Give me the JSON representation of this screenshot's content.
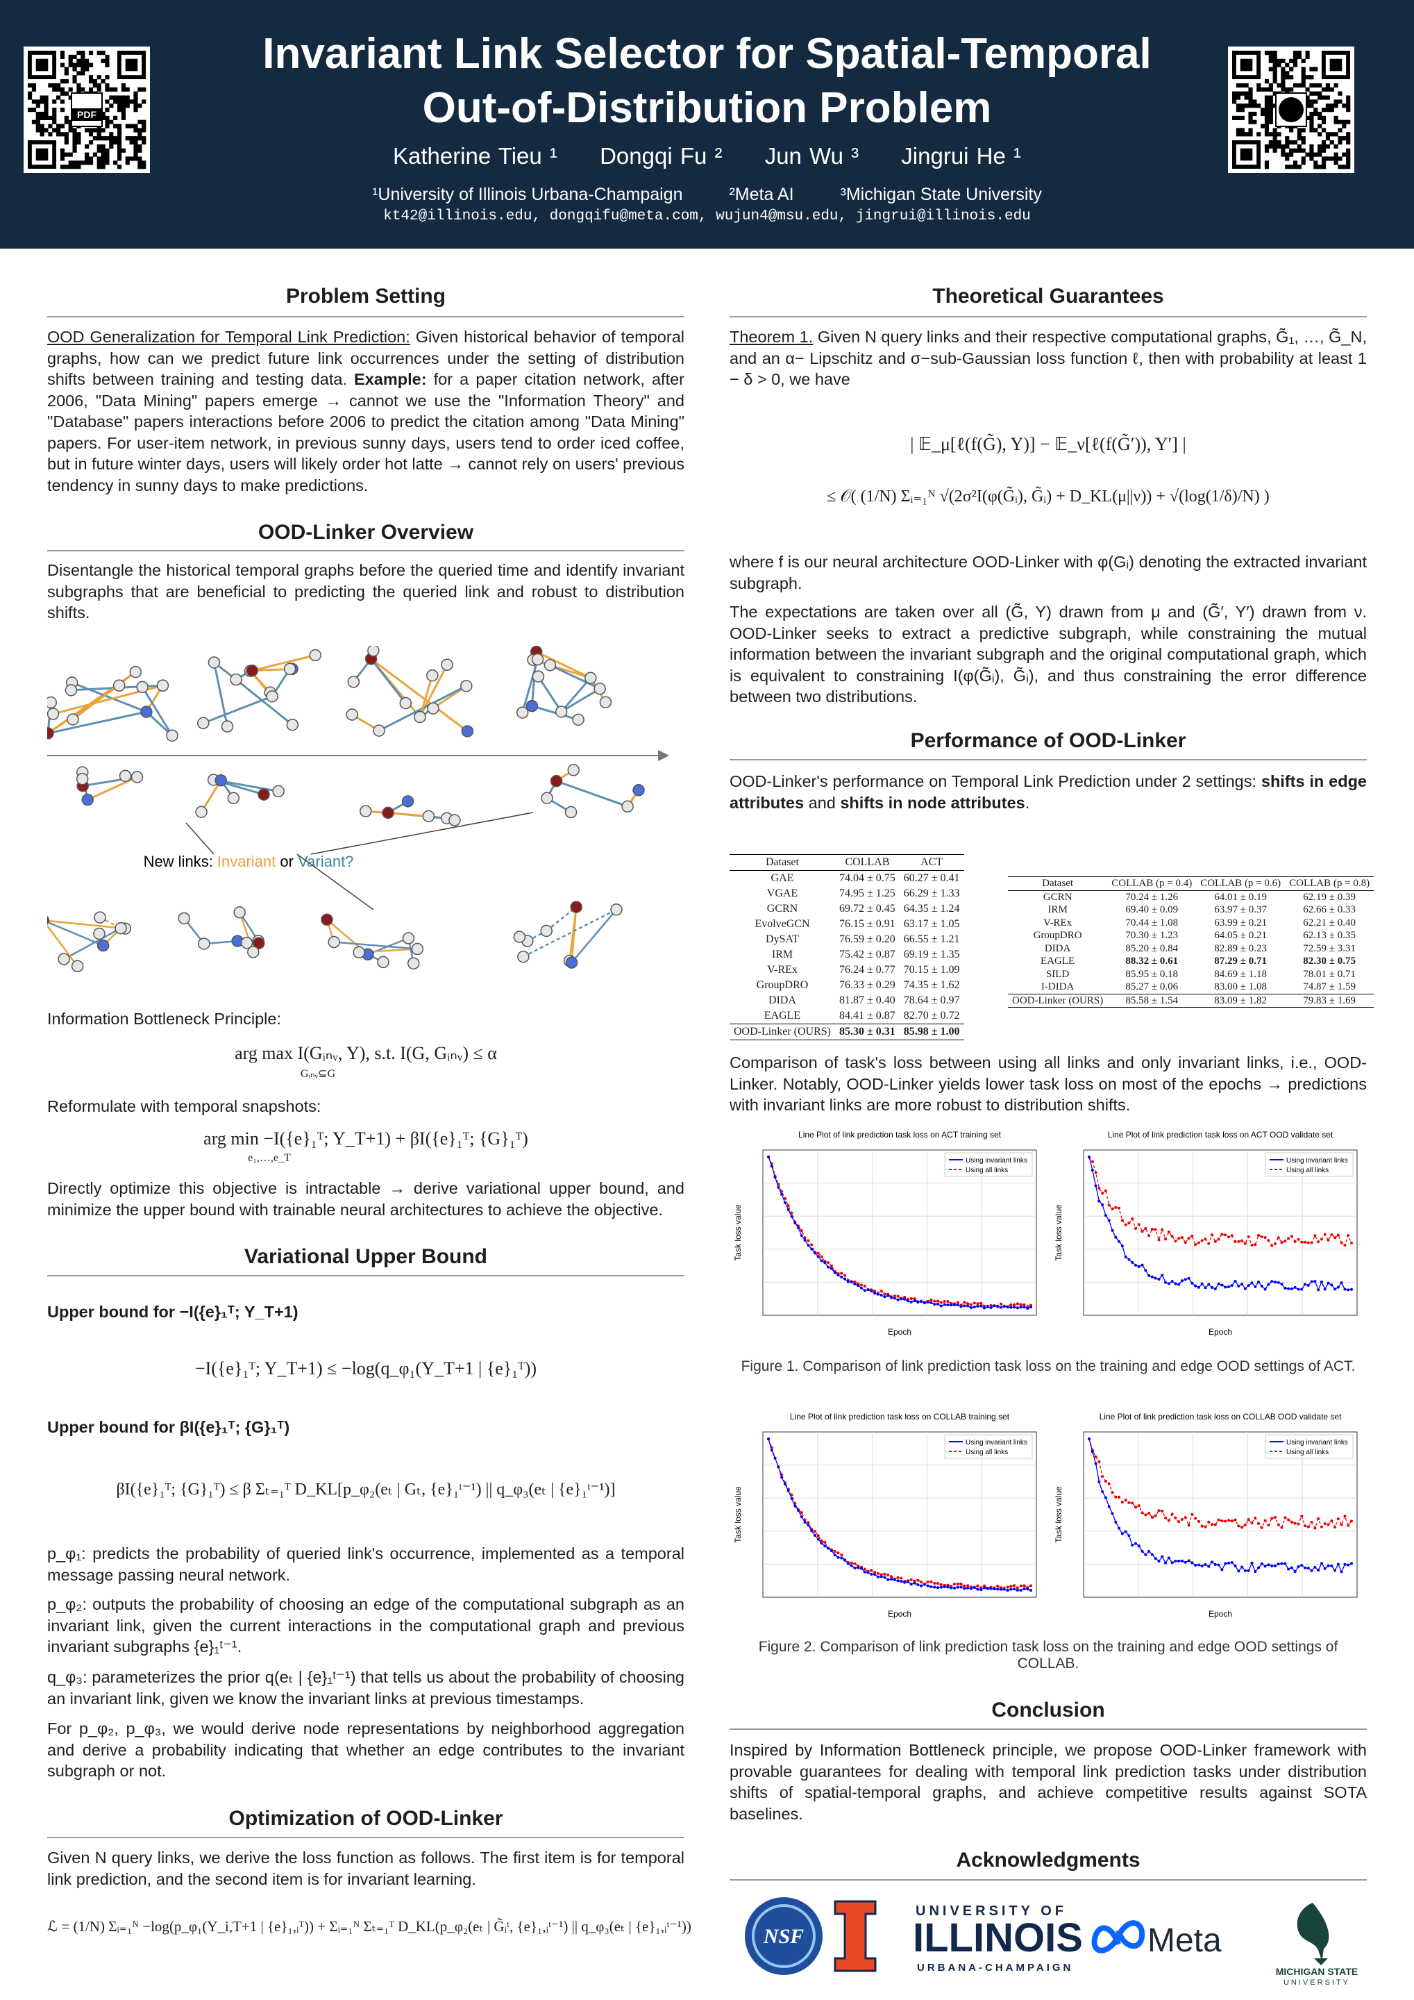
{
  "header": {
    "title_lines": [
      "Invariant Link Selector for Spatial-Temporal",
      "Out-of-Distribution Problem"
    ],
    "authors": [
      "Katherine Tieu ¹",
      "Dongqi Fu ²",
      "Jun Wu ³",
      "Jingrui He ¹"
    ],
    "affiliations": [
      "¹University of Illinois Urbana-Champaign",
      "²Meta AI",
      "³Michigan State University"
    ],
    "emails": "kt42@illinois.edu, dongqifu@meta.com, wujun4@msu.edu, jingrui@illinois.edu",
    "qr_label": "PDF"
  },
  "problem": {
    "heading": "Problem Setting",
    "lead": "OOD Generalization for Temporal Link Prediction:",
    "text1": " Given historical behavior of temporal graphs, how can we predict future link occurrences under the setting of distribution shifts between training and testing data. ",
    "example_label": "Example:",
    "text2": " for a paper citation network, after 2006, \"Data Mining\" papers emerge → cannot we use the \"Information Theory\" and \"Database\" papers interactions before 2006 to predict the citation among \"Data Mining\" papers. For user-item network, in previous sunny days, users tend to order iced coffee, but in future winter days, users will likely order hot latte → cannot rely on users' previous tendency in sunny days to make predictions."
  },
  "overview": {
    "heading": "OOD-Linker Overview",
    "text": "Disentangle the historical temporal graphs before the queried time and identify invariant subgraphs that are beneficial to predicting the queried link and robust to distribution shifts.",
    "figure_label": [
      "New links: ",
      "Invariant",
      " or ",
      "Variant?"
    ],
    "ib_title": "Information Bottleneck Principle:",
    "ib_formula": "arg max I(Gᵢₙᵥ, Y),  s.t.  I(G, Gᵢₙᵥ) ≤ α",
    "ib_sub": "Gᵢₙᵥ⊆G",
    "reform_title": "Reformulate with temporal snapshots:",
    "reform_formula": "arg min −I({e}₁ᵀ; Y_T+1) + βI({e}₁ᵀ; {G}₁ᵀ)",
    "reform_sub": "e₁,…,e_T",
    "direct": "Directly optimize this objective is intractable → derive variational upper bound, and minimize the upper bound with trainable neural architectures to achieve the objective."
  },
  "vub": {
    "heading": "Variational Upper Bound",
    "ub1_title": "Upper bound for −I({e}₁ᵀ; Y_T+1)",
    "ub1_formula": "−I({e}₁ᵀ; Y_T+1) ≤ −log(q_φ₁(Y_T+1 | {e}₁ᵀ))",
    "ub2_title": "Upper bound for βI({e}₁ᵀ; {G}₁ᵀ)",
    "ub2_formula": "βI({e}₁ᵀ; {G}₁ᵀ) ≤ β Σₜ₌₁ᵀ D_KL[p_φ₂(eₜ | Gₜ, {e}₁ᵗ⁻¹) || q_φ₃(eₜ | {e}₁ᵗ⁻¹)]",
    "items": [
      "p_φ₁: predicts the probability of queried link's occurrence, implemented as a temporal message passing neural network.",
      "p_φ₂: outputs the probability of choosing an edge of the computational subgraph as an invariant link, given the current interactions in the computational graph and previous invariant subgraphs {e}₁ᵗ⁻¹.",
      "q_φ₃: parameterizes the prior q(eₜ | {e}₁ᵗ⁻¹) that tells us about the probability of choosing an invariant link, given we know the invariant links at previous timestamps.",
      "For p_φ₂, p_φ₃, we would derive node representations by neighborhood aggregation and derive a probability indicating that whether an edge contributes to the invariant subgraph or not."
    ]
  },
  "optimization": {
    "heading": "Optimization of OOD-Linker",
    "text": "Given N query links, we derive the loss function as follows. The first item is for temporal link prediction, and the second item is for invariant learning.",
    "formula": "ℒ = (1/N) Σᵢ₌₁ᴺ −log(p_φ₁(Y_i,T+1 | {e}₁,ᵢᵀ)) + Σᵢ₌₁ᴺ Σₜ₌₁ᵀ D_KL(p_φ₂(eₜ | G̃ᵢᵗ, {e}₁,ᵢᵗ⁻¹) || q_φ₃(eₜ | {e}₁,ᵢᵗ⁻¹))"
  },
  "theory": {
    "heading": "Theoretical Guarantees",
    "theorem_label": "Theorem 1.",
    "theorem": " Given N query links and their respective computational graphs, G̃₁, …, G̃_N, and an α− Lipschitz and σ−sub-Gaussian loss function ℓ, then with probability at least 1 − δ > 0, we have",
    "bound_line1": "| 𝔼_μ[ℓ(f(G̃), Y)] − 𝔼_ν[ℓ(f(G̃′)), Y′] |",
    "bound_line2": "≤ 𝒪( (1/N) Σᵢ₌₁ᴺ √(2σ²I(φ(G̃ᵢ), G̃ᵢ) + D_KL(μ||ν)) + √(log(1/δ)/N) )",
    "where": "where f is our neural architecture OOD-Linker with φ(Gᵢ) denoting the extracted invariant subgraph.",
    "explain": "The expectations are taken over all (G̃, Y) drawn from μ and (G̃′, Y′) drawn from ν. OOD-Linker seeks to extract a predictive subgraph, while constraining the mutual information between the invariant subgraph and the original computational graph, which is equivalent to constraining I(φ(G̃ᵢ), G̃ᵢ), and thus constraining the error difference between two distributions."
  },
  "performance": {
    "heading": "Performance of OOD-Linker",
    "text_parts": [
      "OOD-Linker's performance on Temporal Link Prediction under 2 settings: ",
      "shifts in edge attributes",
      " and ",
      "shifts in node attributes",
      "."
    ],
    "table1": {
      "header": [
        "Dataset",
        "COLLAB",
        "ACT"
      ],
      "bold_row": 10,
      "rows": [
        [
          "GAE",
          "74.04 ± 0.75",
          "60.27 ± 0.41"
        ],
        [
          "VGAE",
          "74.95 ± 1.25",
          "66.29 ± 1.33"
        ],
        [
          "GCRN",
          "69.72 ± 0.45",
          "64.35 ± 1.24"
        ],
        [
          "EvolveGCN",
          "76.15 ± 0.91",
          "63.17 ± 1.05"
        ],
        [
          "DySAT",
          "76.59 ± 0.20",
          "66.55 ± 1.21"
        ],
        [
          "IRM",
          "75.42 ± 0.87",
          "69.19 ± 1.35"
        ],
        [
          "V-REx",
          "76.24 ± 0.77",
          "70.15 ± 1.09"
        ],
        [
          "GroupDRO",
          "76.33 ± 0.29",
          "74.35 ± 1.62"
        ],
        [
          "DIDA",
          "81.87 ± 0.40",
          "78.64 ± 0.97"
        ],
        [
          "EAGLE",
          "84.41 ± 0.87",
          "82.70 ± 0.72"
        ],
        [
          "OOD-Linker (OURS)",
          "85.30 ± 0.31",
          "85.98 ± 1.00"
        ]
      ]
    },
    "table2": {
      "header": [
        "Dataset",
        "COLLAB (p = 0.4)",
        "COLLAB (p = 0.6)",
        "COLLAB (p = 0.8)"
      ],
      "bold_row": 5,
      "rows": [
        [
          "GCRN",
          "70.24 ± 1.26",
          "64.01 ± 0.19",
          "62.19 ± 0.39"
        ],
        [
          "IRM",
          "69.40 ± 0.09",
          "63.97 ± 0.37",
          "62.66 ± 0.33"
        ],
        [
          "V-REx",
          "70.44 ± 1.08",
          "63.99 ± 0.21",
          "62.21 ± 0.40"
        ],
        [
          "GroupDRO",
          "70.30 ± 1.23",
          "64.05 ± 0.21",
          "62.13 ± 0.35"
        ],
        [
          "DIDA",
          "85.20 ± 0.84",
          "82.89 ± 0.23",
          "72.59 ± 3.31"
        ],
        [
          "EAGLE",
          "88.32 ± 0.61",
          "87.29 ± 0.71",
          "82.30 ± 0.75"
        ],
        [
          "SILD",
          "85.95 ± 0.18",
          "84.69 ± 1.18",
          "78.01 ± 0.71"
        ],
        [
          "I-DIDA",
          "85.27 ± 0.06",
          "83.00 ± 1.08",
          "74.87 ± 1.59"
        ],
        [
          "OOD-Linker (OURS)",
          "85.58 ± 1.54",
          "83.09 ± 1.82",
          "79.83 ± 1.69"
        ]
      ]
    },
    "comparison": "Comparison of task's loss between using all links and only invariant links, i.e., OOD-Linker. Notably, OOD-Linker yields lower task loss on most of the epochs → predictions with invariant links are more robust to distribution shifts.",
    "figures": [
      {
        "panels": [
          {
            "title": "Line Plot of link prediction task loss on ACT training set"
          },
          {
            "title": "Line Plot of link prediction task loss on ACT OOD validate set"
          }
        ],
        "caption": "Figure 1. Comparison of link prediction task loss on the training and edge OOD settings of ACT."
      },
      {
        "panels": [
          {
            "title": "Line Plot of link prediction task loss on COLLAB training set"
          },
          {
            "title": "Line Plot of link prediction task loss on COLLAB OOD validate set"
          }
        ],
        "caption": "Figure 2. Comparison of link prediction task loss on the training and edge OOD settings of COLLAB."
      }
    ],
    "x_label": "Epoch",
    "y_label": "Task loss value",
    "legend": [
      "Using invariant links",
      "Using all links"
    ]
  },
  "conclusion": {
    "heading": "Conclusion",
    "text": "Inspired by Information Bottleneck principle, we propose OOD-Linker framework with provable guarantees for dealing with temporal link prediction tasks under distribution shifts of spatial-temporal graphs, and achieve competitive results against SOTA baselines."
  },
  "acknowledgments": {
    "heading": "Acknowledgments",
    "nsf": "NSF",
    "illinois": [
      "UNIVERSITY OF",
      "ILLINOIS",
      "URBANA-CHAMPAIGN"
    ],
    "meta": "Meta",
    "msu": [
      "MICHIGAN STATE",
      "UNIVERSITY"
    ]
  }
}
